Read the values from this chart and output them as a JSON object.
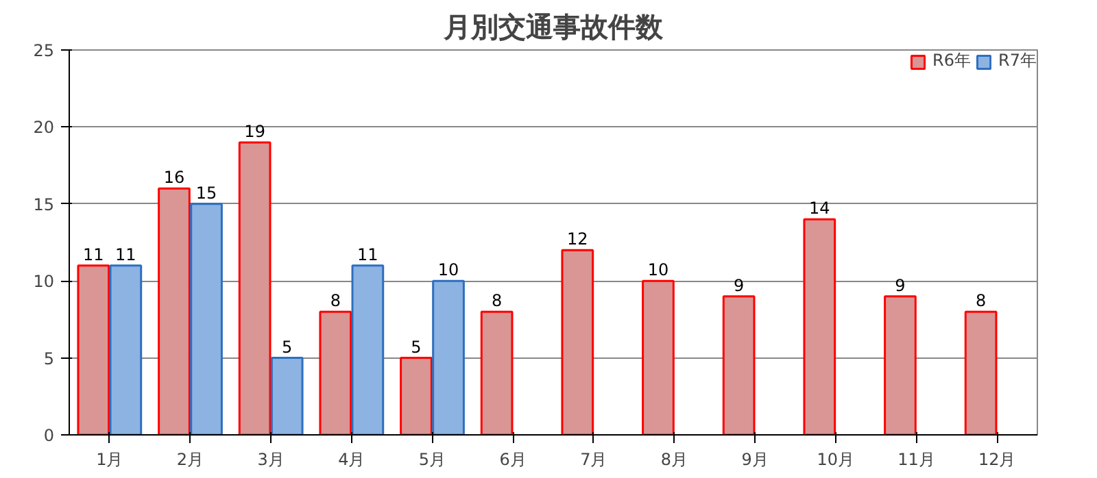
{
  "chart_data": {
    "type": "bar",
    "title": "月別交通事故件数",
    "categories": [
      "1月",
      "2月",
      "3月",
      "4月",
      "5月",
      "6月",
      "7月",
      "8月",
      "9月",
      "10月",
      "11月",
      "12月"
    ],
    "series": [
      {
        "name": "R6年",
        "color": "#d99694",
        "values": [
          11,
          16,
          19,
          8,
          5,
          8,
          12,
          10,
          9,
          14,
          9,
          8
        ]
      },
      {
        "name": "R7年",
        "color": "#8db3e2",
        "values": [
          11,
          15,
          5,
          11,
          10,
          null,
          null,
          null,
          null,
          null,
          null,
          null
        ]
      }
    ],
    "ylim": [
      0,
      25
    ],
    "yticks": [
      0,
      5,
      10,
      15,
      20,
      25
    ],
    "grid": "y",
    "legend": "top right",
    "data_labels": true
  }
}
